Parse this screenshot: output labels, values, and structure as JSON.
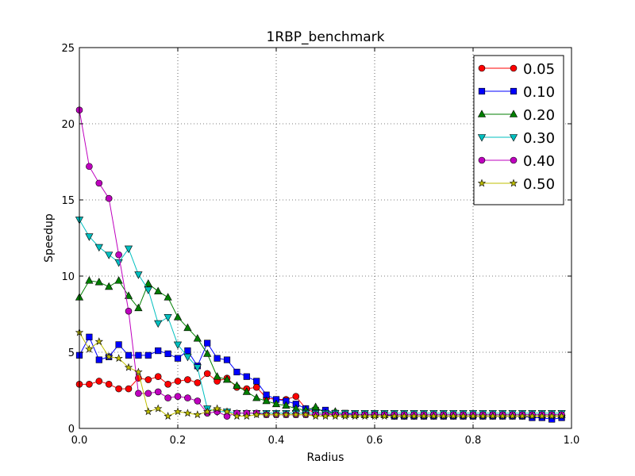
{
  "chart_data": {
    "type": "line",
    "title": "1RBP_benchmark",
    "xlabel": "Radius",
    "ylabel": "Speedup",
    "xlim": [
      0.0,
      1.0
    ],
    "ylim": [
      0,
      25
    ],
    "xticks": [
      "0.0",
      "0.2",
      "0.4",
      "0.6",
      "0.8",
      "1.0"
    ],
    "yticks": [
      "0",
      "5",
      "10",
      "15",
      "20",
      "25"
    ],
    "grid": true,
    "legend_position": "top-right",
    "x": [
      0.0,
      0.02,
      0.04,
      0.06,
      0.08,
      0.1,
      0.12,
      0.14,
      0.16,
      0.18,
      0.2,
      0.22,
      0.24,
      0.26,
      0.28,
      0.3,
      0.32,
      0.34,
      0.36,
      0.38,
      0.4,
      0.42,
      0.44,
      0.46,
      0.48,
      0.5,
      0.52,
      0.54,
      0.56,
      0.58,
      0.6,
      0.62,
      0.64,
      0.66,
      0.68,
      0.7,
      0.72,
      0.74,
      0.76,
      0.78,
      0.8,
      0.82,
      0.84,
      0.86,
      0.88,
      0.9,
      0.92,
      0.94,
      0.96,
      0.98
    ],
    "series": [
      {
        "name": "0.05",
        "color": "#ff0000",
        "marker": "circle",
        "values": [
          2.9,
          2.9,
          3.1,
          2.9,
          2.6,
          2.6,
          3.3,
          3.2,
          3.4,
          2.9,
          3.1,
          3.2,
          3.0,
          3.6,
          3.1,
          3.3,
          2.7,
          2.6,
          2.7,
          2.0,
          1.9,
          1.9,
          2.1,
          1.3,
          1.0,
          1.0,
          0.9,
          0.9,
          0.9,
          0.9,
          0.9,
          0.9,
          0.8,
          0.8,
          0.8,
          0.8,
          0.8,
          0.8,
          0.8,
          0.8,
          0.8,
          0.8,
          0.8,
          0.8,
          0.8,
          0.8,
          0.8,
          0.8,
          0.8,
          0.8
        ]
      },
      {
        "name": "0.10",
        "color": "#0000ff",
        "marker": "square",
        "values": [
          4.8,
          6.0,
          4.5,
          4.7,
          5.5,
          4.8,
          4.8,
          4.8,
          5.1,
          4.9,
          4.6,
          5.1,
          4.1,
          5.6,
          4.6,
          4.5,
          3.7,
          3.4,
          3.1,
          2.2,
          1.9,
          1.8,
          1.6,
          1.3,
          1.2,
          1.2,
          1.0,
          1.0,
          0.9,
          0.9,
          0.9,
          0.9,
          0.8,
          0.8,
          0.8,
          0.8,
          0.8,
          0.8,
          0.8,
          0.8,
          0.8,
          0.8,
          0.8,
          0.8,
          0.8,
          0.8,
          0.7,
          0.7,
          0.6,
          0.7
        ]
      },
      {
        "name": "0.20",
        "color": "#007f00",
        "marker": "triangle-up",
        "values": [
          8.6,
          9.7,
          9.6,
          9.3,
          9.7,
          8.7,
          7.9,
          9.5,
          9.0,
          8.6,
          7.3,
          6.6,
          5.9,
          4.9,
          3.4,
          3.2,
          2.8,
          2.4,
          2.0,
          1.8,
          1.6,
          1.5,
          1.3,
          1.2,
          1.4,
          1.0,
          1.1,
          0.9,
          0.9,
          0.9,
          0.9,
          0.9,
          0.9,
          0.9,
          0.9,
          0.9,
          0.9,
          0.9,
          0.9,
          0.9,
          0.9,
          0.9,
          0.9,
          0.9,
          0.9,
          0.9,
          0.9,
          0.9,
          0.9,
          0.9
        ]
      },
      {
        "name": "0.30",
        "color": "#00bfbf",
        "marker": "triangle-down",
        "values": [
          13.7,
          12.6,
          11.9,
          11.4,
          10.9,
          11.8,
          10.1,
          9.1,
          6.9,
          7.3,
          5.5,
          4.7,
          4.0,
          1.3,
          1.1,
          1.1,
          1.0,
          1.0,
          1.0,
          1.0,
          1.0,
          1.0,
          1.0,
          1.0,
          1.0,
          1.0,
          1.0,
          1.0,
          1.0,
          1.0,
          1.0,
          1.0,
          1.0,
          1.0,
          1.0,
          1.0,
          1.0,
          1.0,
          1.0,
          1.0,
          1.0,
          1.0,
          1.0,
          1.0,
          1.0,
          1.0,
          1.0,
          1.0,
          1.0,
          1.0
        ]
      },
      {
        "name": "0.40",
        "color": "#bf00bf",
        "marker": "circle",
        "values": [
          20.9,
          17.2,
          16.1,
          15.1,
          11.4,
          7.7,
          2.3,
          2.3,
          2.4,
          2.0,
          2.1,
          2.0,
          1.8,
          1.0,
          1.1,
          0.8,
          1.0,
          1.0,
          1.0,
          0.9,
          0.9,
          0.9,
          0.9,
          0.9,
          0.9,
          0.9,
          0.9,
          0.9,
          0.9,
          0.9,
          0.9,
          0.9,
          0.9,
          0.9,
          0.9,
          0.9,
          0.9,
          0.9,
          0.9,
          0.9,
          0.9,
          0.9,
          0.9,
          0.9,
          0.9,
          0.9,
          0.9,
          0.9,
          0.9,
          0.9
        ]
      },
      {
        "name": "0.50",
        "color": "#bfbf00",
        "marker": "star",
        "values": [
          6.3,
          5.2,
          5.7,
          4.7,
          4.6,
          4.0,
          3.7,
          1.1,
          1.3,
          0.8,
          1.1,
          1.0,
          0.9,
          1.1,
          1.3,
          1.1,
          0.8,
          0.8,
          0.9,
          0.9,
          0.9,
          0.9,
          0.9,
          0.9,
          0.8,
          0.8,
          0.8,
          0.8,
          0.8,
          0.8,
          0.8,
          0.8,
          0.8,
          0.8,
          0.8,
          0.8,
          0.8,
          0.8,
          0.8,
          0.8,
          0.8,
          0.8,
          0.8,
          0.8,
          0.8,
          0.8,
          0.8,
          0.8,
          0.8,
          0.8
        ]
      }
    ]
  }
}
